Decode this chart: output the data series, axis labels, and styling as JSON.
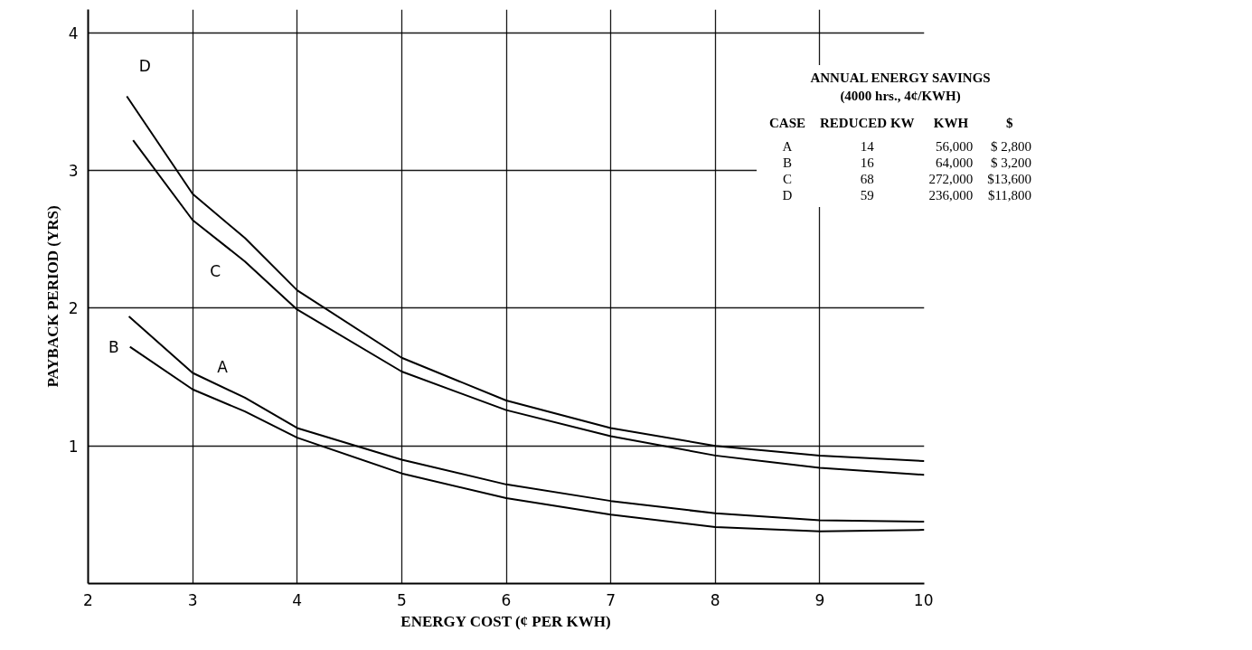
{
  "chart_data": {
    "type": "line",
    "xlabel": "ENERGY COST (¢ PER KWH)",
    "ylabel": "PAYBACK PERIOD (YRS)",
    "xlim": [
      2,
      10
    ],
    "ylim": [
      0,
      4.17
    ],
    "xticks": [
      2,
      3,
      4,
      5,
      6,
      7,
      8,
      9,
      10
    ],
    "yticks": [
      1,
      2,
      3,
      4
    ],
    "grid": true,
    "marker": "none",
    "line_style": "solid",
    "series": [
      {
        "name": "A",
        "color": "#000000",
        "x": [
          2.39,
          3,
          3.5,
          4,
          5,
          6,
          7,
          8,
          9,
          10
        ],
        "values": [
          1.94,
          1.53,
          1.35,
          1.13,
          0.9,
          0.72,
          0.6,
          0.51,
          0.46,
          0.45
        ]
      },
      {
        "name": "B",
        "color": "#000000",
        "x": [
          2.4,
          3,
          3.5,
          4,
          5,
          6,
          7,
          8,
          9,
          10
        ],
        "values": [
          1.72,
          1.41,
          1.25,
          1.06,
          0.8,
          0.62,
          0.5,
          0.41,
          0.38,
          0.39
        ]
      },
      {
        "name": "C",
        "color": "#000000",
        "x": [
          2.43,
          3,
          3.5,
          4,
          5,
          6,
          7,
          8,
          9,
          10
        ],
        "values": [
          3.22,
          2.64,
          2.34,
          1.99,
          1.54,
          1.26,
          1.07,
          0.93,
          0.84,
          0.79
        ]
      },
      {
        "name": "D",
        "color": "#000000",
        "x": [
          2.37,
          3,
          3.5,
          4,
          5,
          6,
          7,
          8,
          9,
          10
        ],
        "values": [
          3.54,
          2.83,
          2.51,
          2.13,
          1.64,
          1.33,
          1.13,
          1.0,
          0.93,
          0.89
        ]
      }
    ],
    "annotations": [
      "ANNUAL ENERGY SAVINGS",
      "(4000 hrs., 4¢/KWH)",
      "CASE",
      "REDUCED KW",
      "KWH",
      "$",
      "A",
      "14",
      "56,000",
      "$ 2,800",
      "B",
      "16",
      "64,000",
      "$ 3,200",
      "C",
      "68",
      "272,000",
      "$13,600",
      "D",
      "59",
      "236,000",
      "$11,800"
    ]
  }
}
